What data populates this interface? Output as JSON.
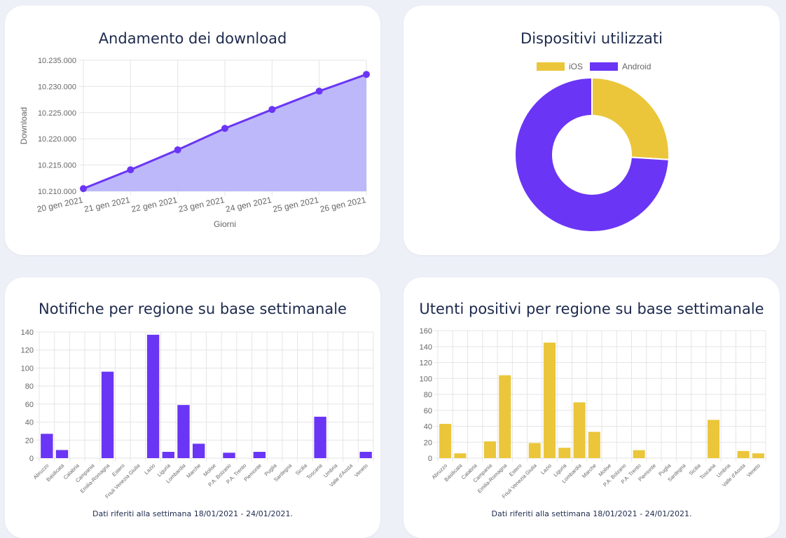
{
  "colors": {
    "purple": "#6a35f5",
    "purple_fill": "#b9b4fa",
    "yellow": "#ebc63a",
    "grid": "#e5e5e5"
  },
  "chart_data": [
    {
      "type": "area",
      "title": "Andamento dei download",
      "xlabel": "Giorni",
      "ylabel": "Download",
      "categories": [
        "20 gen 2021",
        "21 gen 2021",
        "22 gen 2021",
        "23 gen 2021",
        "24 gen 2021",
        "25 gen 2021",
        "26 gen 2021"
      ],
      "values": [
        10210500,
        10214100,
        10217900,
        10222000,
        10225600,
        10229100,
        10232300
      ],
      "ylim": [
        10210000,
        10235000
      ],
      "yticks": [
        "10.210.000",
        "10.215.000",
        "10.220.000",
        "10.225.000",
        "10.230.000",
        "10.235.000"
      ],
      "grid": true
    },
    {
      "type": "pie",
      "title": "Dispositivi utilizzati",
      "labels": [
        "iOS",
        "Android"
      ],
      "values": [
        26,
        74
      ],
      "legend": "top"
    },
    {
      "type": "bar",
      "title": "Notifiche per regione su base settimanale",
      "categories": [
        "Abruzzo",
        "Basilicata",
        "Calabria",
        "Campania",
        "Emilia-Romagna",
        "Estero",
        "Friuli Venezia Giulia",
        "Lazio",
        "Liguria",
        "Lombardia",
        "Marche",
        "Molise",
        "P.A. Bolzano",
        "P.A. Trento",
        "Piemonte",
        "Puglia",
        "Sardegna",
        "Sicilia",
        "Toscana",
        "Umbria",
        "Valle d'Aosta",
        "Veneto"
      ],
      "values": [
        27,
        9,
        0,
        0,
        96,
        0,
        0,
        137,
        7,
        59,
        16,
        0,
        6,
        0,
        7,
        0,
        0,
        0,
        46,
        0,
        0,
        7
      ],
      "ylim": [
        0,
        140
      ],
      "yticks": [
        "0",
        "20",
        "40",
        "60",
        "80",
        "100",
        "120",
        "140"
      ],
      "grid": true
    },
    {
      "type": "bar",
      "title": "Utenti positivi per regione su base settimanale",
      "categories": [
        "Abruzzo",
        "Basilicata",
        "Calabria",
        "Campania",
        "Emilia-Romagna",
        "Estero",
        "Friuli Venezia Giulia",
        "Lazio",
        "Liguria",
        "Lombardia",
        "Marche",
        "Molise",
        "P.A. Bolzano",
        "P.A. Trento",
        "Piemonte",
        "Puglia",
        "Sardegna",
        "Sicilia",
        "Toscana",
        "Umbria",
        "Valle d'Aosta",
        "Veneto"
      ],
      "values": [
        43,
        6,
        0,
        21,
        104,
        0,
        19,
        145,
        13,
        70,
        33,
        0,
        0,
        10,
        0,
        0,
        0,
        0,
        48,
        0,
        9,
        6
      ],
      "ylim": [
        0,
        160
      ],
      "yticks": [
        "0",
        "20",
        "40",
        "60",
        "80",
        "100",
        "120",
        "140",
        "160"
      ],
      "grid": true
    }
  ],
  "footnotes": {
    "notifiche": "Dati riferiti alla settimana 18/01/2021 - 24/01/2021.",
    "positivi": "Dati riferiti alla settimana 18/01/2021 - 24/01/2021."
  }
}
